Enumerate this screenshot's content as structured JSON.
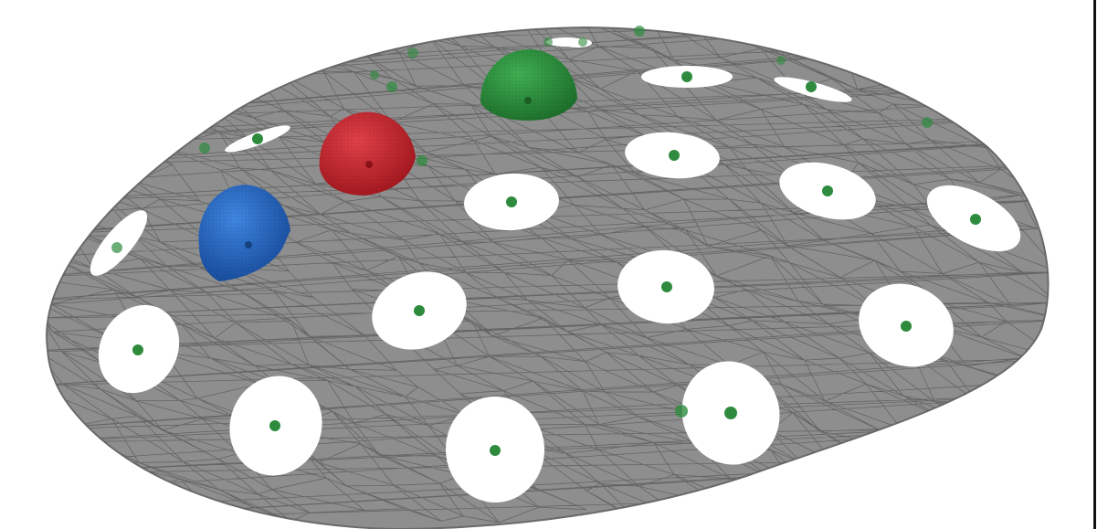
{
  "scene": {
    "object": "perforated-dome-mesh",
    "dome_color": "#8e8e8e",
    "mesh_line_color": "#5e5e5e",
    "hole_color": "#ffffff",
    "marker_color": "#2e8b3e",
    "sphere_colors": {
      "blue": "#1f5fbf",
      "red": "#c8232b",
      "green": "#2a8c3a"
    }
  }
}
